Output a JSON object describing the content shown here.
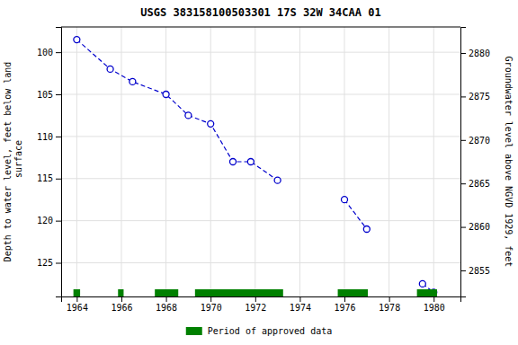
{
  "chart_data": {
    "type": "line",
    "title": "USGS 383158100503301 17S 32W 34CAA 01",
    "y_label": "Depth to water level, feet below land\n surface",
    "y2_label": "Groundwater level above NGVD 1929, feet",
    "series": [
      {
        "x": [
          1964.0,
          1965.5,
          1966.5,
          1968.0,
          1969.0,
          1970.0,
          1971.0,
          1971.8,
          1973.0
        ],
        "values": [
          98.5,
          102.0,
          103.5,
          105.0,
          107.5,
          108.5,
          113.0,
          113.0,
          115.2
        ],
        "color": "#0000CC",
        "marker": "circle",
        "line_style": "dashed"
      },
      {
        "x": [
          1976.0,
          1977.0
        ],
        "values": [
          117.5,
          121.0
        ],
        "color": "#0000CC",
        "marker": "circle",
        "line_style": "dashed"
      },
      {
        "x": [
          1979.5,
          1980.0
        ],
        "values": [
          127.5,
          128.5
        ],
        "color": "#0000CC",
        "marker": "circle",
        "line_style": "dashed"
      },
      {
        "name": "Period of approved data",
        "type": "span",
        "color": "#008000",
        "x": [
          [
            1963.85,
            1964.15
          ],
          [
            1965.85,
            1966.1
          ],
          [
            1967.5,
            1968.55
          ],
          [
            1969.3,
            1973.25
          ],
          [
            1975.7,
            1977.05
          ],
          [
            1979.25,
            1980.15
          ]
        ]
      }
    ],
    "xlim": [
      1963.3,
      1981.2
    ],
    "xticks": [
      1964,
      1966,
      1968,
      1970,
      1972,
      1974,
      1976,
      1978,
      1980
    ],
    "ylim": [
      129,
      97
    ],
    "yticks": [
      100,
      105,
      110,
      115,
      120,
      125
    ],
    "y2lim": [
      2852,
      2883
    ],
    "y2ticks": [
      2855,
      2860,
      2865,
      2870,
      2875,
      2880
    ],
    "grid": true
  }
}
